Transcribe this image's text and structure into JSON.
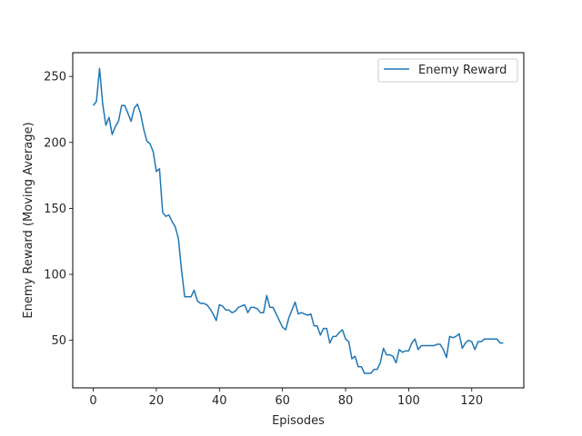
{
  "chart_data": {
    "type": "line",
    "title": "",
    "xlabel": "Episodes",
    "ylabel": "Enemy Reward (Moving Average)",
    "xlim": [
      -6.5,
      136.5
    ],
    "ylim": [
      14,
      268
    ],
    "xticks": [
      0,
      20,
      40,
      60,
      80,
      100,
      120
    ],
    "yticks": [
      50,
      100,
      150,
      200,
      250
    ],
    "grid": false,
    "legend_position": "top-right",
    "series": [
      {
        "name": "Enemy Reward",
        "color": "#1f77b4",
        "x": [
          0,
          1,
          2,
          3,
          4,
          5,
          6,
          7,
          8,
          9,
          10,
          11,
          12,
          13,
          14,
          15,
          16,
          17,
          18,
          19,
          20,
          21,
          22,
          23,
          24,
          25,
          26,
          27,
          28,
          29,
          30,
          31,
          32,
          33,
          34,
          35,
          36,
          37,
          38,
          39,
          40,
          41,
          42,
          43,
          44,
          45,
          46,
          47,
          48,
          49,
          50,
          51,
          52,
          53,
          54,
          55,
          56,
          57,
          58,
          59,
          60,
          61,
          62,
          63,
          64,
          65,
          66,
          67,
          68,
          69,
          70,
          71,
          72,
          73,
          74,
          75,
          76,
          77,
          78,
          79,
          80,
          81,
          82,
          83,
          84,
          85,
          86,
          87,
          88,
          89,
          90,
          91,
          92,
          93,
          94,
          95,
          96,
          97,
          98,
          99,
          100,
          101,
          102,
          103,
          104,
          105,
          106,
          107,
          108,
          109,
          110,
          111,
          112,
          113,
          114,
          115,
          116,
          117,
          118,
          119,
          120,
          121,
          122,
          123,
          124,
          125,
          126,
          127,
          128,
          129,
          130
        ],
        "y": [
          228,
          231,
          256,
          229,
          213,
          219,
          206,
          212,
          216,
          228,
          228,
          222,
          216,
          226,
          229,
          222,
          210,
          201,
          199,
          193,
          178,
          180,
          147,
          144,
          145,
          140,
          136,
          127,
          103,
          83,
          83,
          83,
          88,
          80,
          78,
          78,
          77,
          74,
          70,
          65,
          77,
          76,
          73,
          73,
          71,
          72,
          75,
          76,
          77,
          71,
          75,
          75,
          74,
          71,
          71,
          84,
          75,
          75,
          70,
          65,
          60,
          58,
          67,
          73,
          79,
          70,
          71,
          70,
          69,
          70,
          61,
          61,
          54,
          59,
          59,
          48,
          53,
          53,
          56,
          58,
          51,
          49,
          36,
          38,
          30,
          30,
          25,
          25,
          25,
          28,
          28,
          33,
          44,
          39,
          39,
          38,
          33,
          43,
          41,
          42,
          42,
          48,
          51,
          43,
          46,
          46,
          46,
          46,
          46,
          47,
          47,
          43,
          37,
          53,
          52,
          53,
          55,
          44,
          48,
          50,
          49,
          43,
          49,
          49,
          51,
          51,
          51,
          51,
          51,
          48,
          48
        ]
      }
    ]
  }
}
